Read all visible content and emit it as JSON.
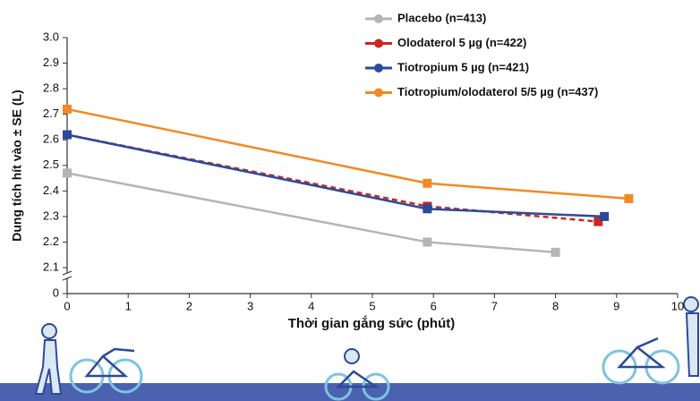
{
  "chart_data": {
    "type": "line",
    "xlabel": "Thời gian gắng sức (phút)",
    "ylabel": "Dung tích hít vào ± SE (L)",
    "xlim": [
      0,
      10
    ],
    "xticks": [
      0,
      1,
      2,
      3,
      4,
      5,
      6,
      7,
      8,
      9,
      10
    ],
    "ylim": [
      0,
      3.0
    ],
    "y_axis_break": [
      0,
      2.1
    ],
    "yticks": [
      0,
      2.1,
      2.2,
      2.3,
      2.4,
      2.5,
      2.6,
      2.7,
      2.8,
      2.9,
      {
        "value": 3.0,
        "label": "3.0"
      }
    ],
    "legend": "upper right",
    "series": [
      {
        "name": "Placebo (n=413)",
        "color": "#b5b5b5",
        "dashed": false,
        "x": [
          0,
          5.9,
          8
        ],
        "values": [
          2.47,
          2.2,
          2.16
        ]
      },
      {
        "name": "Olodaterol 5 µg (n=422)",
        "color": "#c8281e",
        "dashed": true,
        "x": [
          0,
          5.9,
          8.7
        ],
        "values": [
          2.62,
          2.34,
          2.28
        ]
      },
      {
        "name": "Tiotropium 5 µg (n=421)",
        "color": "#2b4a9b",
        "dashed": false,
        "x": [
          0,
          5.9,
          8.8
        ],
        "values": [
          2.62,
          2.33,
          2.3
        ]
      },
      {
        "name": "Tiotropium/olodaterol 5/5 µg (n=437)",
        "color": "#f08a24",
        "dashed": false,
        "x": [
          0,
          5.9,
          9.2
        ],
        "values": [
          2.72,
          2.43,
          2.37
        ]
      }
    ]
  }
}
